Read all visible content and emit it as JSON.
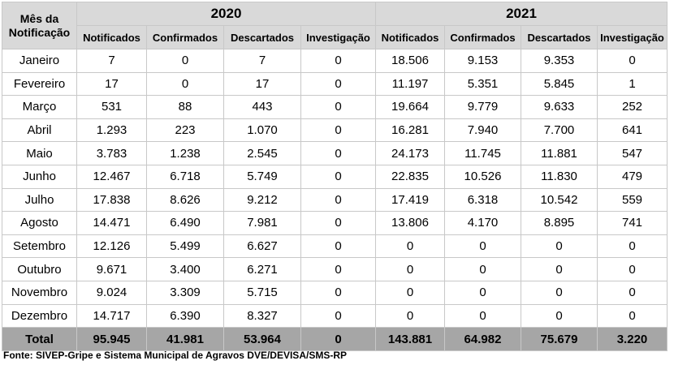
{
  "table": {
    "corner_label": "Mês da Notificação",
    "years": [
      "2020",
      "2021"
    ],
    "columns": [
      "Notificados",
      "Confirmados",
      "Descartados",
      "Investigação",
      "Notificados",
      "Confirmados",
      "Descartados",
      "Investigação"
    ],
    "rows": [
      {
        "month": "Janeiro",
        "values": [
          "7",
          "0",
          "7",
          "0",
          "18.506",
          "9.153",
          "9.353",
          "0"
        ]
      },
      {
        "month": "Fevereiro",
        "values": [
          "17",
          "0",
          "17",
          "0",
          "11.197",
          "5.351",
          "5.845",
          "1"
        ]
      },
      {
        "month": "Março",
        "values": [
          "531",
          "88",
          "443",
          "0",
          "19.664",
          "9.779",
          "9.633",
          "252"
        ]
      },
      {
        "month": "Abril",
        "values": [
          "1.293",
          "223",
          "1.070",
          "0",
          "16.281",
          "7.940",
          "7.700",
          "641"
        ]
      },
      {
        "month": "Maio",
        "values": [
          "3.783",
          "1.238",
          "2.545",
          "0",
          "24.173",
          "11.745",
          "11.881",
          "547"
        ]
      },
      {
        "month": "Junho",
        "values": [
          "12.467",
          "6.718",
          "5.749",
          "0",
          "22.835",
          "10.526",
          "11.830",
          "479"
        ]
      },
      {
        "month": "Julho",
        "values": [
          "17.838",
          "8.626",
          "9.212",
          "0",
          "17.419",
          "6.318",
          "10.542",
          "559"
        ]
      },
      {
        "month": "Agosto",
        "values": [
          "14.471",
          "6.490",
          "7.981",
          "0",
          "13.806",
          "4.170",
          "8.895",
          "741"
        ]
      },
      {
        "month": "Setembro",
        "values": [
          "12.126",
          "5.499",
          "6.627",
          "0",
          "0",
          "0",
          "0",
          "0"
        ]
      },
      {
        "month": "Outubro",
        "values": [
          "9.671",
          "3.400",
          "6.271",
          "0",
          "0",
          "0",
          "0",
          "0"
        ]
      },
      {
        "month": "Novembro",
        "values": [
          "9.024",
          "3.309",
          "5.715",
          "0",
          "0",
          "0",
          "0",
          "0"
        ]
      },
      {
        "month": "Dezembro",
        "values": [
          "14.717",
          "6.390",
          "8.327",
          "0",
          "0",
          "0",
          "0",
          "0"
        ]
      }
    ],
    "total": {
      "label": "Total",
      "values": [
        "95.945",
        "41.981",
        "53.964",
        "0",
        "143.881",
        "64.982",
        "75.679",
        "3.220"
      ]
    }
  },
  "source": "Fonte: SIVEP-Gripe e Sistema Municipal de Agravos DVE/DEVISA/SMS-RP"
}
